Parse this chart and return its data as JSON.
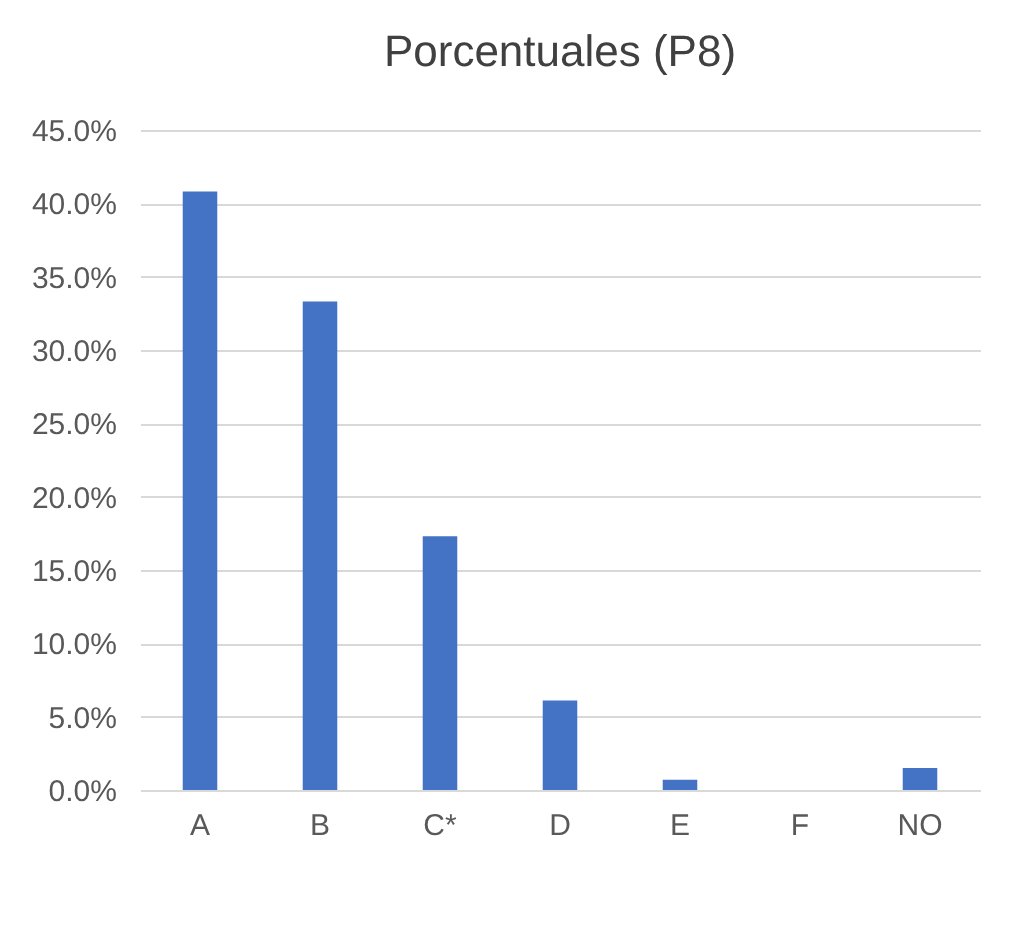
{
  "chart_data": {
    "type": "bar",
    "title": "Porcentuales (P8)",
    "categories": [
      "A",
      "B",
      "C*",
      "D",
      "E",
      "F",
      "NO"
    ],
    "values": [
      40.8,
      33.3,
      17.3,
      6.1,
      0.7,
      0,
      1.5
    ],
    "color": "#4472c4",
    "ylim": [
      0,
      45
    ],
    "yticks": [
      {
        "value": 0,
        "label": "0.0%"
      },
      {
        "value": 5,
        "label": "5.0%"
      },
      {
        "value": 10,
        "label": "10.0%"
      },
      {
        "value": 15,
        "label": "15.0%"
      },
      {
        "value": 20,
        "label": "20.0%"
      },
      {
        "value": 25,
        "label": "25.0%"
      },
      {
        "value": 30,
        "label": "30.0%"
      },
      {
        "value": 35,
        "label": "35.0%"
      },
      {
        "value": 40,
        "label": "40.0%"
      },
      {
        "value": 45,
        "label": "45.0%"
      }
    ],
    "grid": "y"
  }
}
